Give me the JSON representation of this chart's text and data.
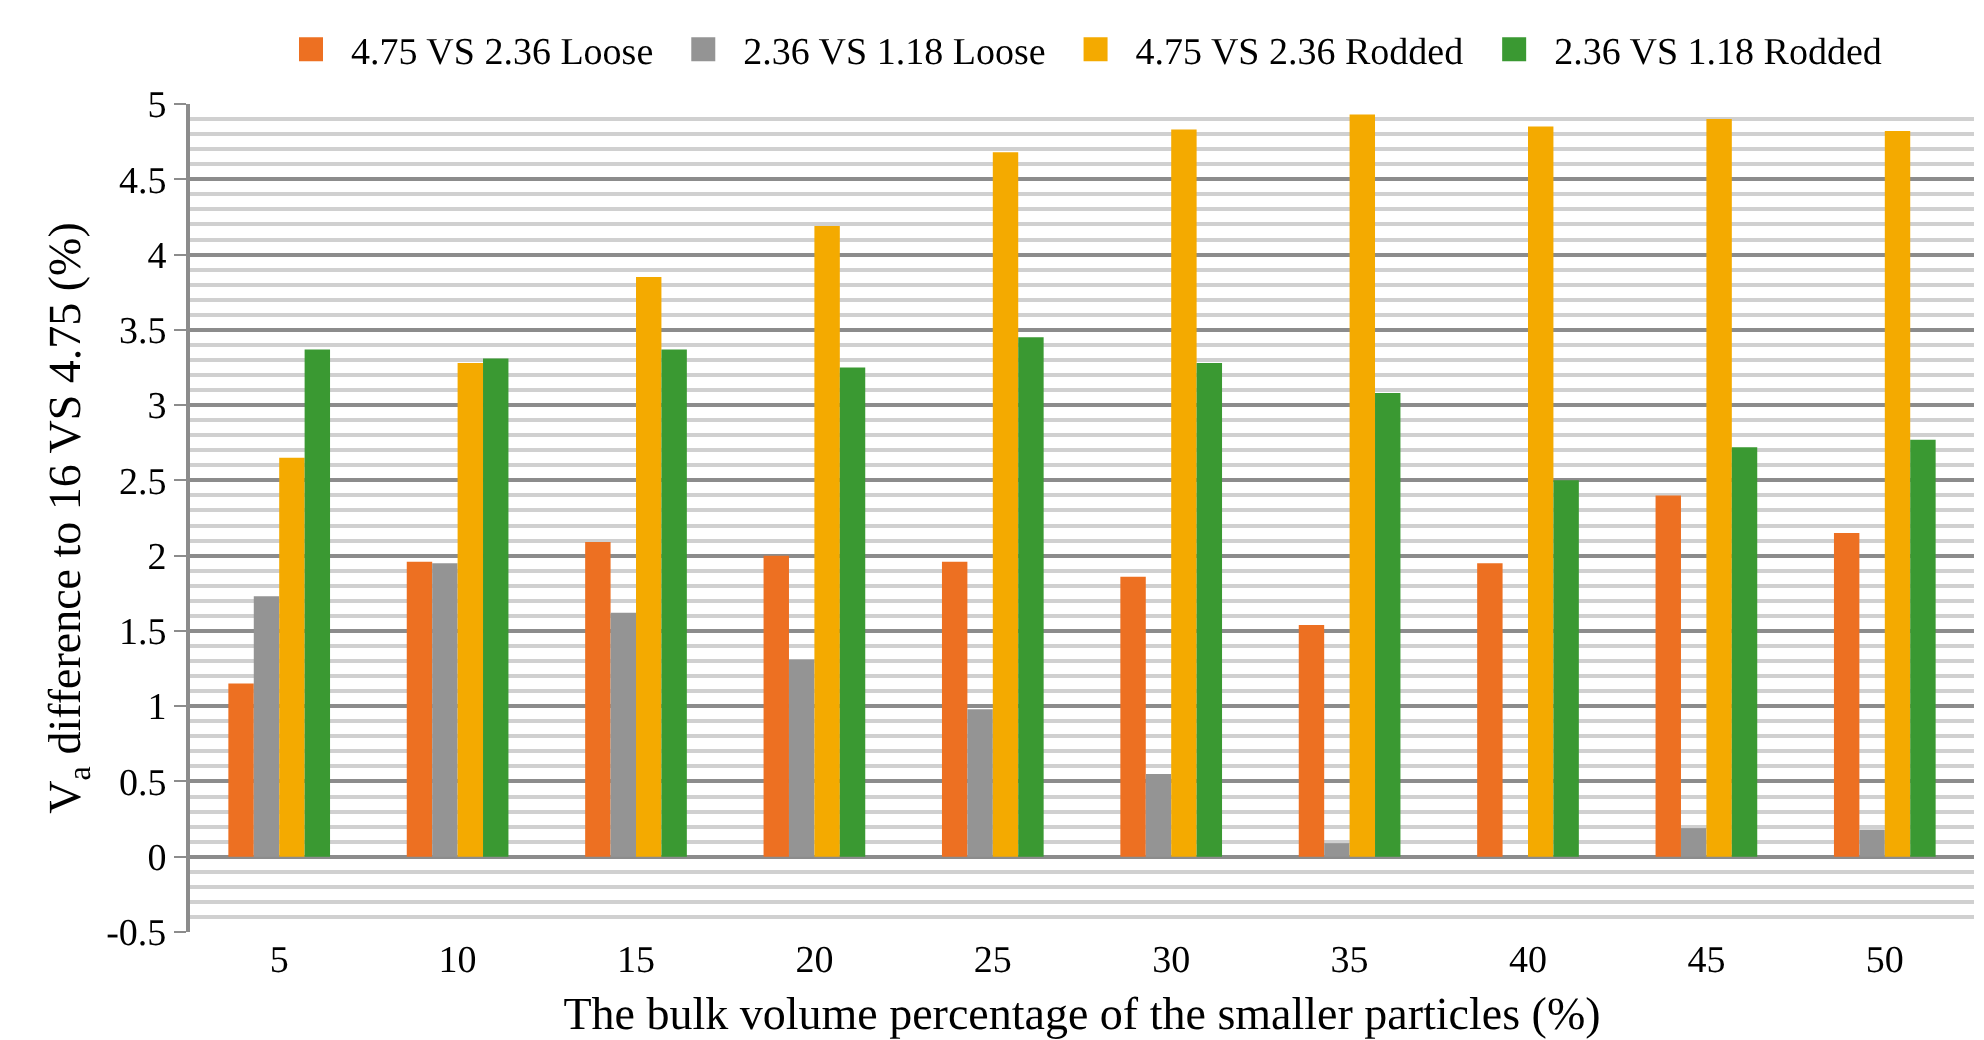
{
  "chart_data": {
    "type": "bar",
    "xlabel": "The bulk volume percentage of the smaller particles (%)",
    "ylabel": "V$_{a}$ difference to 16 VS 4.75 (%)",
    "categories": [
      "5",
      "10",
      "15",
      "20",
      "25",
      "30",
      "35",
      "40",
      "45",
      "50"
    ],
    "series": [
      {
        "name": "4.75 VS 2.36 Loose",
        "color": "#ed7022",
        "values": [
          1.15,
          1.96,
          2.09,
          2.0,
          1.96,
          1.86,
          1.54,
          1.95,
          2.4,
          2.15
        ]
      },
      {
        "name": "2.36 VS 1.18 Loose",
        "color": "#949494",
        "values": [
          1.73,
          1.95,
          1.62,
          1.31,
          0.98,
          0.55,
          0.09,
          0,
          0.19,
          0.18
        ]
      },
      {
        "name": "4.75 VS 2.36 Rodded",
        "color": "#f4aa00",
        "values": [
          2.65,
          3.28,
          3.85,
          4.19,
          4.68,
          4.83,
          4.93,
          4.85,
          4.9,
          4.82
        ]
      },
      {
        "name": "2.36 VS 1.18 Rodded",
        "color": "#3a9932",
        "values": [
          3.37,
          3.31,
          3.37,
          3.25,
          3.45,
          3.28,
          3.08,
          2.5,
          2.72,
          2.77
        ]
      }
    ],
    "ylim": [
      -0.5,
      5
    ],
    "yticks": [
      -0.5,
      0,
      0.5,
      1,
      1.5,
      2,
      2.5,
      3,
      3.5,
      4,
      4.5,
      5
    ],
    "grid": "y",
    "legend": "top"
  }
}
